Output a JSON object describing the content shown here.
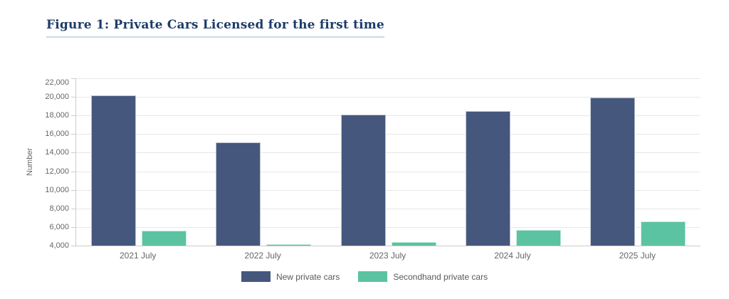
{
  "figure": {
    "title": "Figure 1: Private Cars Licensed for the first time"
  },
  "chart_data": {
    "type": "bar",
    "title": "Figure 1: Private Cars Licensed for the first time",
    "categories": [
      "2021 July",
      "2022 July",
      "2023 July",
      "2024 July",
      "2025 July"
    ],
    "series": [
      {
        "name": "New private cars",
        "color": "#45577D",
        "values": [
          20200,
          15100,
          18100,
          18500,
          19900
        ]
      },
      {
        "name": "Secondhand private cars",
        "color": "#5BC3A1",
        "values": [
          5600,
          4150,
          4350,
          5650,
          6600
        ]
      }
    ],
    "xlabel": "",
    "ylabel": "Number",
    "ylim": [
      4000,
      22000
    ],
    "ytick_step": 2000,
    "ytick_labels": [
      "22,000",
      "20,000",
      "18,000",
      "16,000",
      "14,000",
      "12,000",
      "10,000",
      "8,000",
      "6,000",
      "4,000"
    ],
    "grid": true,
    "legend_position": "bottom-center"
  },
  "style": {
    "background_color": "#FFFFFF",
    "title_color": "#1D3C68",
    "title_underline_color": "#C9D9E6",
    "axis_text_color": "#666666",
    "gridline_color": "#E7E7E7",
    "axis_line_color": "#CCCCCC",
    "legend_text_color": "#595959"
  }
}
